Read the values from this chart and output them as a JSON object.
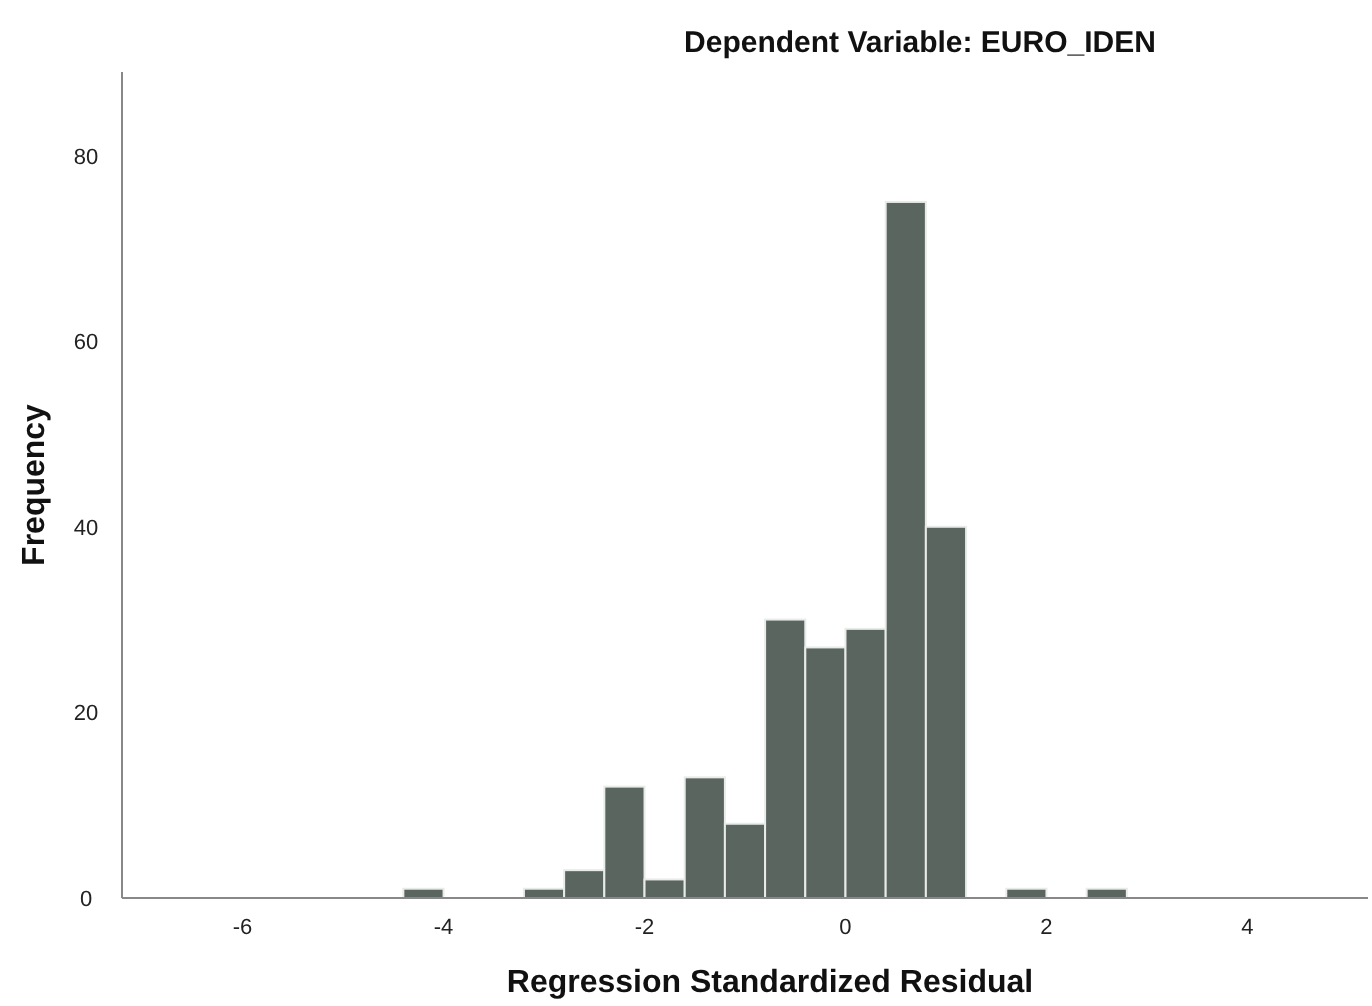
{
  "chart_data": {
    "type": "histogram",
    "title": "Dependent Variable: EURO_IDEN",
    "xlabel": "Regression Standardized Residual",
    "ylabel": "Frequency",
    "bins": [
      -4.4,
      -4.0,
      -3.6,
      -3.2,
      -2.8,
      -2.4,
      -2.0,
      -1.6,
      -1.2,
      -0.8,
      -0.4,
      0,
      0.4,
      0.8,
      1.2,
      1.6,
      2.0,
      2.4,
      2.8
    ],
    "values": [
      1,
      0,
      0,
      1,
      3,
      12,
      2,
      13,
      8,
      30,
      27,
      29,
      75,
      40,
      0,
      1,
      0,
      1
    ],
    "color": "#5b6560",
    "xlim": [
      -7.2,
      5.2
    ],
    "xticks": [
      -6,
      -4,
      -2,
      0,
      2,
      4
    ],
    "ylim": [
      0,
      89
    ],
    "yticks": [
      0,
      20,
      40,
      60,
      80
    ],
    "grid": false
  }
}
